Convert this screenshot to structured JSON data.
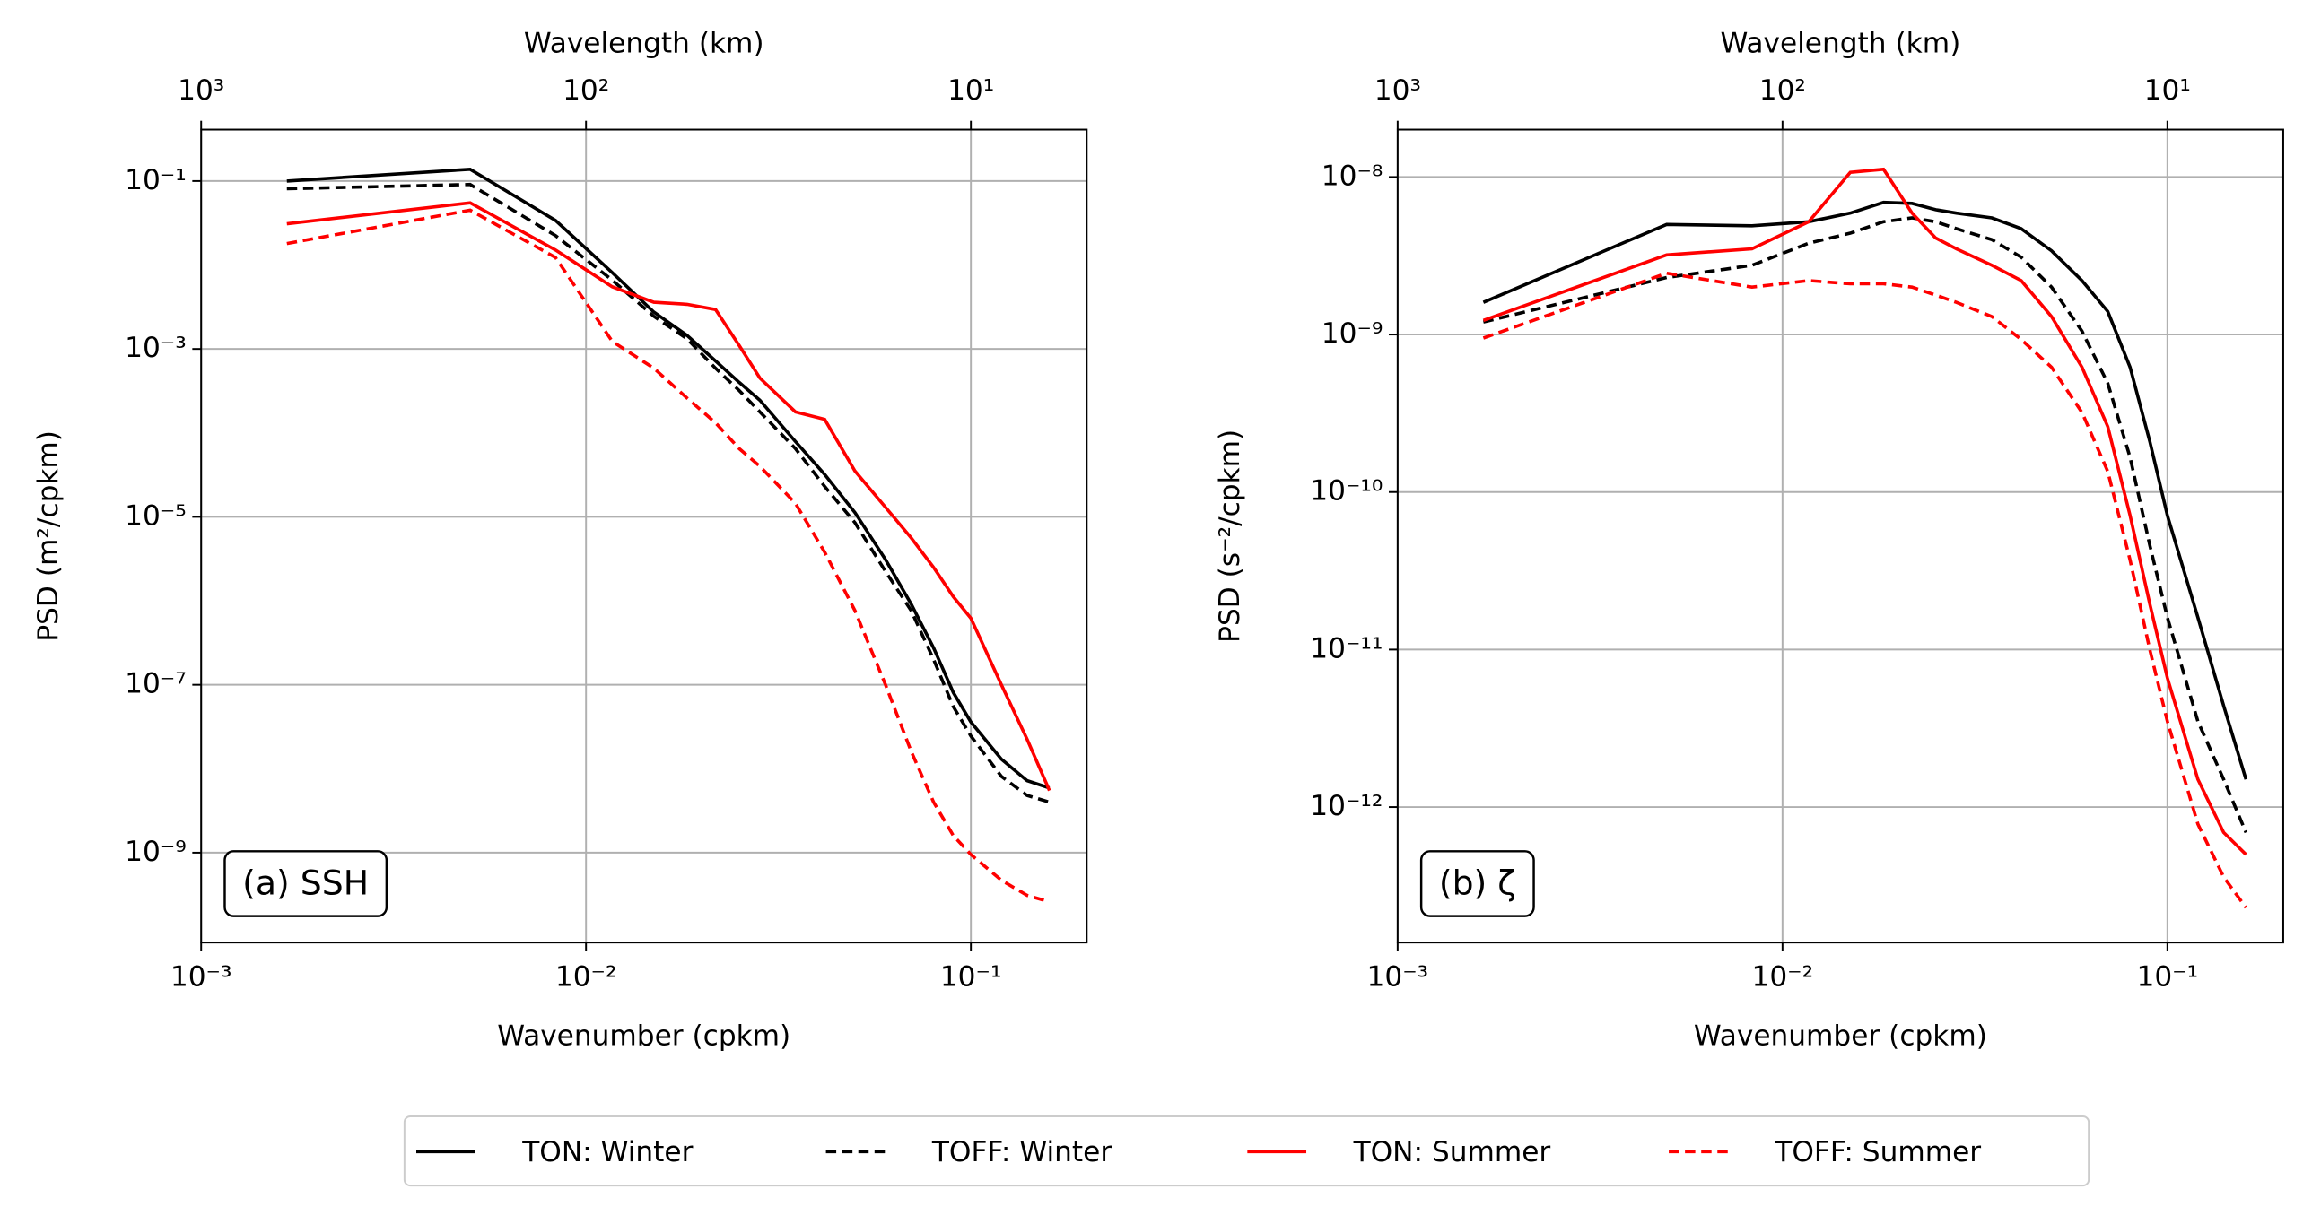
{
  "chart_data": [
    {
      "type": "line",
      "log_x": true,
      "log_y": true,
      "grid": true,
      "legend": "bottom-center",
      "xlabel": "Wavenumber (cpkm)",
      "ylabel": "PSD (m²/cpkm)",
      "x2label": "Wavelength (km)",
      "annotation": "(a) SSH",
      "xlim": [
        0.001,
        0.2
      ],
      "xticks": [
        {
          "value": 0.001,
          "label": "10⁻³"
        },
        {
          "value": 0.01,
          "label": "10⁻²"
        },
        {
          "value": 0.1,
          "label": "10⁻¹"
        }
      ],
      "x2lim": [
        1000,
        5
      ],
      "x2ticks": [
        {
          "value": 1000,
          "label": "10³"
        },
        {
          "value": 100,
          "label": "10²"
        },
        {
          "value": 10,
          "label": "10¹"
        }
      ],
      "ylim": [
        8.5e-11,
        0.41
      ],
      "yticks": [
        {
          "value": 0.1,
          "label": "10⁻¹"
        },
        {
          "value": 0.001,
          "label": "10⁻³"
        },
        {
          "value": 1e-05,
          "label": "10⁻⁵"
        },
        {
          "value": 1e-07,
          "label": "10⁻⁷"
        },
        {
          "value": 1e-09,
          "label": "10⁻⁹"
        }
      ],
      "x": [
        0.00167,
        0.005,
        0.00833,
        0.0117,
        0.015,
        0.0183,
        0.0217,
        0.025,
        0.0283,
        0.035,
        0.0417,
        0.05,
        0.06,
        0.07,
        0.08,
        0.09,
        0.1,
        0.12,
        0.14,
        0.16
      ],
      "series": [
        {
          "name": "TON: Winter",
          "color": "#000000",
          "dash": false,
          "values": [
            0.1,
            0.138,
            0.034,
            0.0081,
            0.00275,
            0.00145,
            0.00072,
            0.0004,
            0.000245,
            7.9e-05,
            3.2e-05,
            1.12e-05,
            3.1e-06,
            9.1e-07,
            2.75e-07,
            8.1e-08,
            3.6e-08,
            1.3e-08,
            7.2e-09,
            5.9e-09
          ]
        },
        {
          "name": "TOFF: Winter",
          "color": "#000000",
          "dash": true,
          "values": [
            0.081,
            0.091,
            0.0224,
            0.0066,
            0.00245,
            0.00132,
            0.00059,
            0.00032,
            0.000178,
            6.5e-05,
            2.3e-05,
            8.5e-06,
            2.24e-06,
            7.6e-07,
            2e-07,
            5.5e-08,
            2.45e-08,
            8.1e-09,
            4.8e-09,
            4e-09
          ]
        },
        {
          "name": "TON: Summer",
          "color": "#ff0000",
          "dash": false,
          "values": [
            0.031,
            0.055,
            0.0151,
            0.0055,
            0.0036,
            0.0034,
            0.00295,
            0.0011,
            0.00045,
            0.000178,
            0.000145,
            3.5e-05,
            1.3e-05,
            5.6e-06,
            2.5e-06,
            1.12e-06,
            6.2e-07,
            1e-07,
            2.24e-08,
            5.5e-09
          ]
        },
        {
          "name": "TOFF: Summer",
          "color": "#ff0000",
          "dash": true,
          "values": [
            0.018,
            0.045,
            0.0123,
            0.00123,
            0.00059,
            0.00026,
            0.000132,
            6.5e-05,
            4e-05,
            1.45e-05,
            3.8e-06,
            7.6e-07,
            1e-07,
            1.6e-08,
            4e-09,
            1.6e-09,
            9.5e-10,
            4.7e-10,
            3.1e-10,
            2.6e-10
          ]
        }
      ]
    },
    {
      "type": "line",
      "log_x": true,
      "log_y": true,
      "grid": true,
      "xlabel": "Wavenumber (cpkm)",
      "ylabel": "PSD (s⁻²/cpkm)",
      "x2label": "Wavelength (km)",
      "annotation": "(b) ζ",
      "xlim": [
        0.001,
        0.2
      ],
      "xticks": [
        {
          "value": 0.001,
          "label": "10⁻³"
        },
        {
          "value": 0.01,
          "label": "10⁻²"
        },
        {
          "value": 0.1,
          "label": "10⁻¹"
        }
      ],
      "x2lim": [
        1000,
        5
      ],
      "x2ticks": [
        {
          "value": 1000,
          "label": "10³"
        },
        {
          "value": 100,
          "label": "10²"
        },
        {
          "value": 10,
          "label": "10¹"
        }
      ],
      "ylim": [
        1.38e-13,
        2e-08
      ],
      "yticks": [
        {
          "value": 1e-08,
          "label": "10⁻⁸"
        },
        {
          "value": 1e-09,
          "label": "10⁻⁹"
        },
        {
          "value": 1e-10,
          "label": "10⁻¹⁰"
        },
        {
          "value": 1e-11,
          "label": "10⁻¹¹"
        },
        {
          "value": 1e-12,
          "label": "10⁻¹²"
        }
      ],
      "x": [
        0.00167,
        0.005,
        0.00833,
        0.0117,
        0.015,
        0.0183,
        0.0217,
        0.025,
        0.0283,
        0.035,
        0.0417,
        0.05,
        0.06,
        0.07,
        0.08,
        0.09,
        0.1,
        0.12,
        0.14,
        0.16
      ],
      "series": [
        {
          "color": "#000000",
          "dash": false,
          "values": [
            1.6e-09,
            5e-09,
            4.9e-09,
            5.2e-09,
            5.9e-09,
            6.9e-09,
            6.8e-09,
            6.2e-09,
            5.9e-09,
            5.5e-09,
            4.7e-09,
            3.4e-09,
            2.2e-09,
            1.4e-09,
            6.2e-10,
            2.1e-10,
            7.1e-11,
            1.6e-11,
            4.4e-12,
            1.5e-12
          ]
        },
        {
          "color": "#000000",
          "dash": true,
          "values": [
            1.2e-09,
            2.3e-09,
            2.75e-09,
            3.8e-09,
            4.4e-09,
            5.2e-09,
            5.5e-09,
            5.2e-09,
            4.7e-09,
            4e-09,
            3.1e-09,
            2e-09,
            1.05e-09,
            4.9e-10,
            1.66e-10,
            4.6e-11,
            1.6e-11,
            3.5e-12,
            1.5e-12,
            6.9e-13
          ]
        },
        {
          "color": "#ff0000",
          "dash": false,
          "values": [
            1.23e-09,
            3.2e-09,
            3.5e-09,
            5.2e-09,
            1.07e-08,
            1.12e-08,
            5.9e-09,
            4.1e-09,
            3.5e-09,
            2.75e-09,
            2.2e-09,
            1.3e-09,
            6.2e-10,
            2.6e-10,
            7.1e-11,
            1.95e-11,
            6.6e-12,
            1.5e-12,
            6.9e-13,
            5e-13
          ]
        },
        {
          "color": "#ff0000",
          "dash": true,
          "values": [
            9.5e-10,
            2.45e-09,
            2e-09,
            2.2e-09,
            2.1e-09,
            2.1e-09,
            2e-09,
            1.78e-09,
            1.6e-09,
            1.3e-09,
            9.3e-10,
            6.2e-10,
            3.2e-10,
            1.35e-10,
            3.7e-11,
            1e-11,
            3.5e-12,
            7.8e-13,
            3.6e-13,
            2.3e-13
          ]
        }
      ]
    }
  ]
}
